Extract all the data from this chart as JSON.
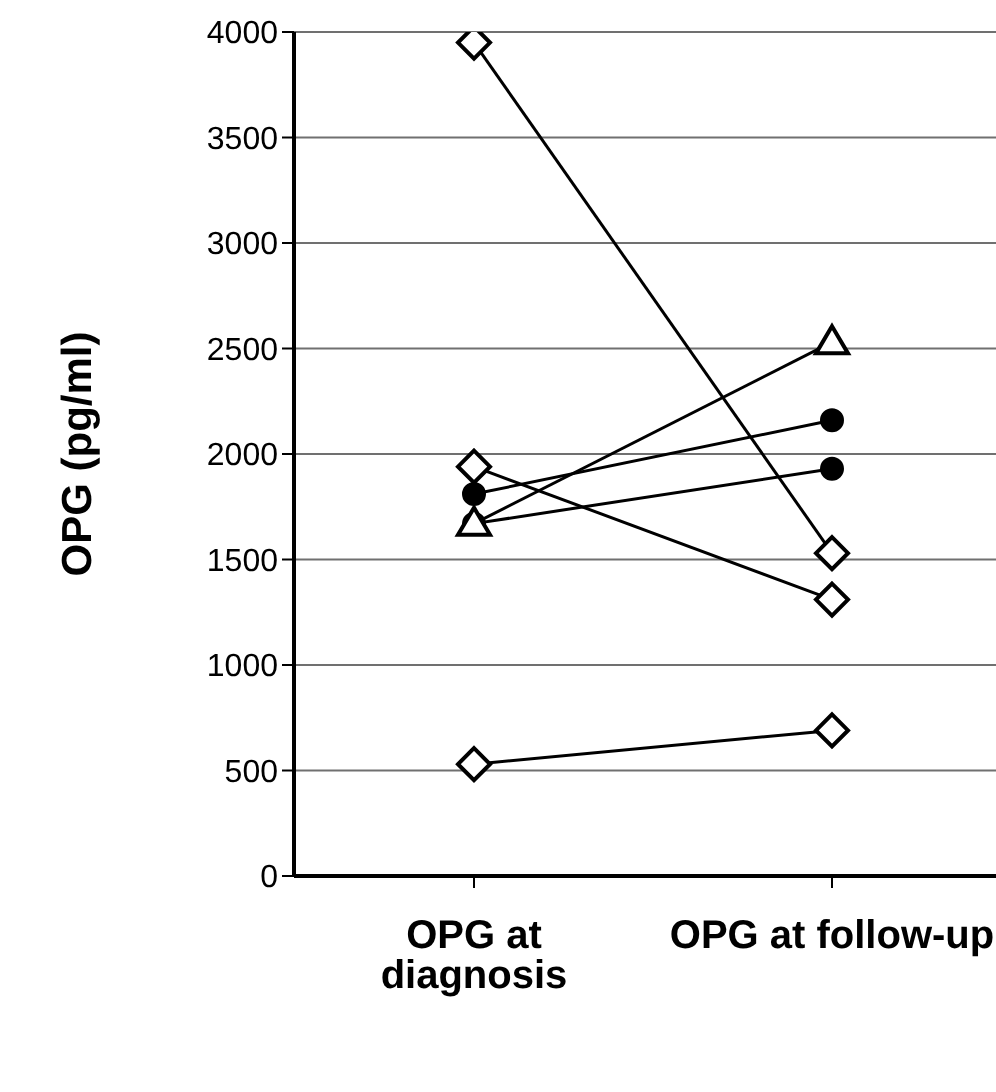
{
  "chart_data": {
    "type": "line",
    "ylabel": "OPG (pg/ml)",
    "categories": [
      "OPG at diagnosis",
      "OPG at follow-up"
    ],
    "series": [
      {
        "color": "#000000",
        "marker": "diamond",
        "values": [
          3950,
          1530
        ]
      },
      {
        "color": "#000000",
        "marker": "diamond",
        "values": [
          1940,
          1310
        ]
      },
      {
        "color": "#000000",
        "marker": "diamond",
        "values": [
          530,
          690
        ]
      },
      {
        "color": "#000000",
        "marker": "circle",
        "values": [
          1670,
          1930
        ]
      },
      {
        "color": "#000000",
        "marker": "circle",
        "values": [
          1810,
          2160
        ]
      },
      {
        "color": "#000000",
        "marker": "triangle",
        "values": [
          1670,
          2530
        ]
      }
    ],
    "ylim": [
      0,
      4000
    ],
    "yticks": [
      0,
      500,
      1000,
      1500,
      2000,
      2500,
      3000,
      3500,
      4000
    ],
    "grid": "y",
    "legend": false
  }
}
